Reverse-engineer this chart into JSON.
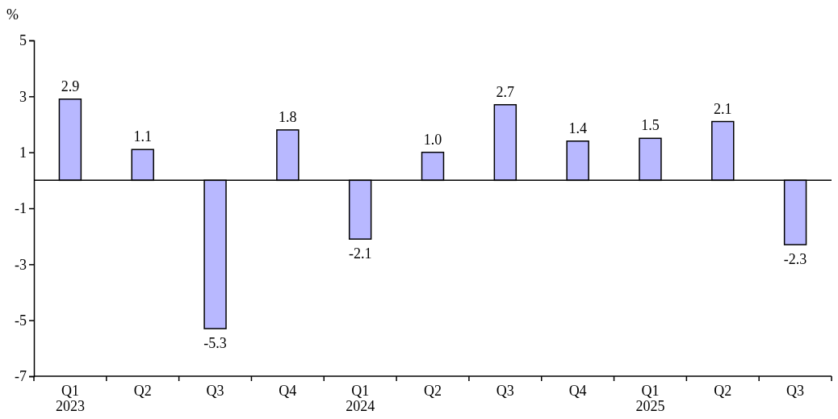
{
  "chart_data": {
    "type": "bar",
    "ylabel": "%",
    "categories": [
      "Q1\n2023",
      "Q2",
      "Q3",
      "Q4",
      "Q1\n2024",
      "Q2",
      "Q3",
      "Q4",
      "Q1\n2025",
      "Q2",
      "Q3"
    ],
    "values": [
      2.9,
      1.1,
      -5.3,
      1.8,
      -2.1,
      1.0,
      2.7,
      1.4,
      1.5,
      2.1,
      -2.3
    ],
    "value_labels": [
      "2.9",
      "1.1",
      "-5.3",
      "1.8",
      "-2.1",
      "1.0",
      "2.7",
      "1.4",
      "1.5",
      "2.1",
      "-2.3"
    ],
    "color": "#b8b8ff",
    "ylim": [
      -7,
      5
    ],
    "yticks": [
      5,
      3,
      1,
      -1,
      -3,
      -5,
      -7
    ],
    "grid": false
  }
}
